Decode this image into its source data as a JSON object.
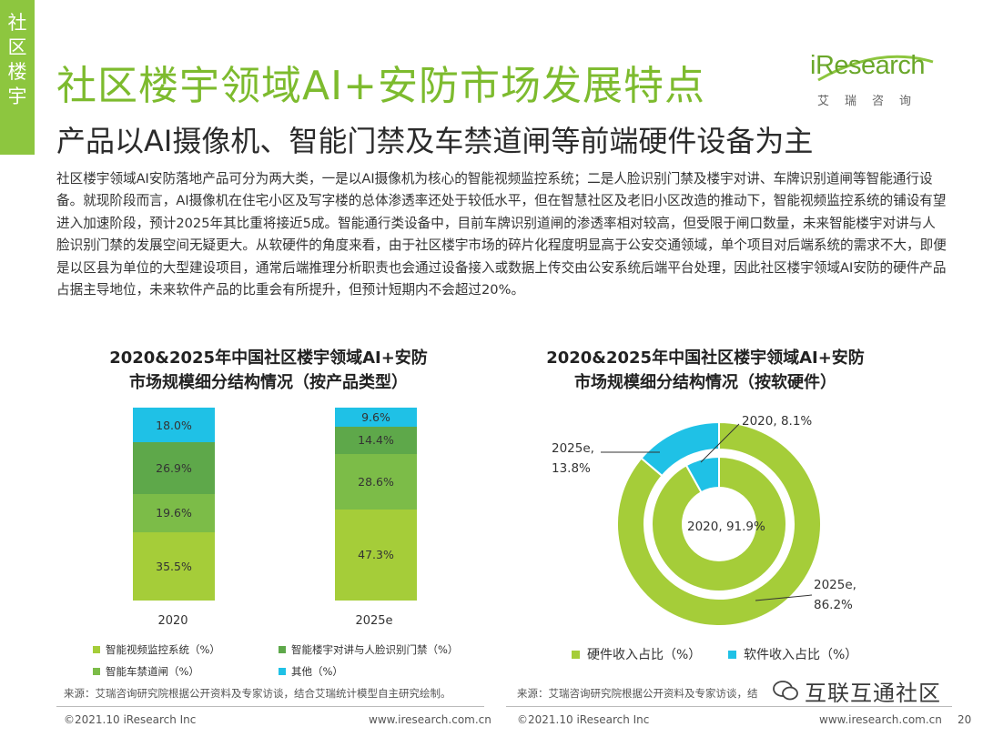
{
  "side_tag": [
    "社",
    "区",
    "楼",
    "宇"
  ],
  "title": "社区楼宇领域AI+安防市场发展特点",
  "subtitle": "产品以AI摄像机、智能门禁及车禁道闸等前端硬件设备为主",
  "logo": {
    "en": "iResearch",
    "cn": "艾瑞咨询"
  },
  "body_text": "社区楼宇领域AI安防落地产品可分为两大类，一是以AI摄像机为核心的智能视频监控系统；二是人脸识别门禁及楼宇对讲、车牌识别道闸等智能通行设备。就现阶段而言，AI摄像机在住宅小区及写字楼的总体渗透率还处于较低水平，但在智慧社区及老旧小区改造的推动下，智能视频监控系统的铺设有望进入加速阶段，预计2025年其比重将接近5成。智能通行类设备中，目前车牌识别道闸的渗透率相对较高，但受限于闸口数量，未来智能楼宇对讲与人脸识别门禁的发展空间无疑更大。从软硬件的角度来看，由于社区楼宇市场的碎片化程度明显高于公安交通领域，单个项目对后端系统的需求不大，即便是以区县为单位的大型建设项目，通常后端推理分析职责也会通过设备接入或数据上传交由公安系统后端平台处理，因此社区楼宇领域AI安防的硬件产品占据主导地位，未来软件产品的比重会有所提升，但预计短期内不会超过20%。",
  "colors": {
    "green_light": "#a5cd39",
    "green_mid": "#7cbc48",
    "green_dark": "#5ea84a",
    "cyan": "#1fc1e6",
    "brand": "#7dbb2e"
  },
  "chart_data": [
    {
      "type": "bar",
      "stacked": true,
      "title": [
        "2020&2025年中国社区楼宇领域AI+安防",
        "市场规模细分结构情况（按产品类型）"
      ],
      "categories": [
        "2020",
        "2025e"
      ],
      "series": [
        {
          "name": "智能视频监控系统（%）",
          "values": [
            35.5,
            47.3
          ],
          "labels": [
            "35.5%",
            "47.3%"
          ],
          "color": "#a5cd39"
        },
        {
          "name": "智能车禁道闸（%）",
          "values": [
            19.6,
            28.6
          ],
          "labels": [
            "19.6%",
            "28.6%"
          ],
          "color": "#7cbc48"
        },
        {
          "name": "智能楼宇对讲与人脸识别门禁（%）",
          "values": [
            26.9,
            14.4
          ],
          "labels": [
            "26.9%",
            "14.4%"
          ],
          "color": "#5ea84a"
        },
        {
          "name": "其他（%）",
          "values": [
            18.0,
            9.6
          ],
          "labels": [
            "18.0%",
            "9.6%"
          ],
          "color": "#1fc1e6"
        }
      ],
      "legend": [
        "智能视频监控系统（%）",
        "智能楼宇对讲与人脸识别门禁（%）",
        "智能车禁道闸（%）",
        "其他（%）"
      ],
      "ylim": [
        0,
        100
      ]
    },
    {
      "type": "pie",
      "donut": true,
      "title": [
        "2020&2025年中国社区楼宇领域AI+安防",
        "市场规模细分结构情况（按软硬件）"
      ],
      "rings": [
        {
          "name": "2020",
          "role": "inner",
          "values": [
            91.9,
            8.1
          ]
        },
        {
          "name": "2025e",
          "role": "outer",
          "values": [
            86.2,
            13.8
          ]
        }
      ],
      "series_names": [
        "硬件收入占比（%）",
        "软件收入占比（%）"
      ],
      "labels": {
        "inner_software": "2020, 8.1%",
        "inner_hardware": "2020, 91.9%",
        "outer_software_1": "2025e,",
        "outer_software_2": "13.8%",
        "outer_hardware_1": "2025e,",
        "outer_hardware_2": "86.2%"
      }
    }
  ],
  "source_text": "来源：艾瑞咨询研究院根据公开资料及专家访谈，结合艾瑞统计模型自主研究绘制。",
  "source_text_right": "来源：艾瑞咨询研究院根据公开资料及专家访谈，结",
  "footer": {
    "copyright": "©2021.10 iResearch Inc",
    "url": "www.iresearch.com.cn",
    "page": "20"
  },
  "watermark": "互联互通社区"
}
